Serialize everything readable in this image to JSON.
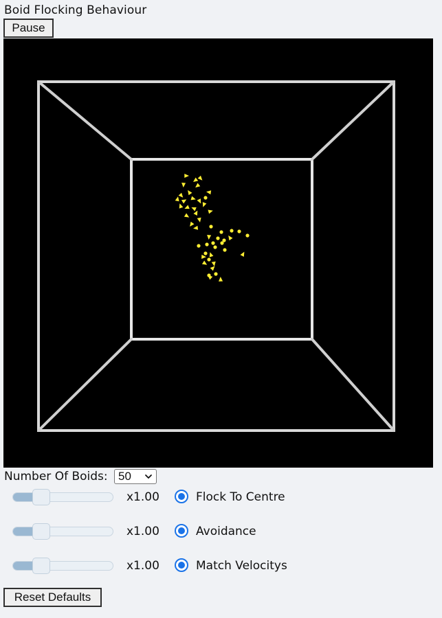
{
  "header": {
    "title": "Boid Flocking Behaviour"
  },
  "controls": {
    "pause_label": "Pause",
    "reset_label": "Reset Defaults",
    "num_boids_label": "Number Of Boids:",
    "num_boids_value": "50"
  },
  "sliders": [
    {
      "multiplier": "x1.00",
      "label": "Flock To Centre",
      "level": 0.32,
      "selected": true
    },
    {
      "multiplier": "x1.00",
      "label": "Avoidance",
      "level": 0.32,
      "selected": true
    },
    {
      "multiplier": "x1.00",
      "label": "Match Velocitys",
      "level": 0.32,
      "selected": true
    }
  ],
  "scene": {
    "background": "#000000",
    "box_color": "#e6e6e6",
    "boid_color": "#ffee33"
  }
}
